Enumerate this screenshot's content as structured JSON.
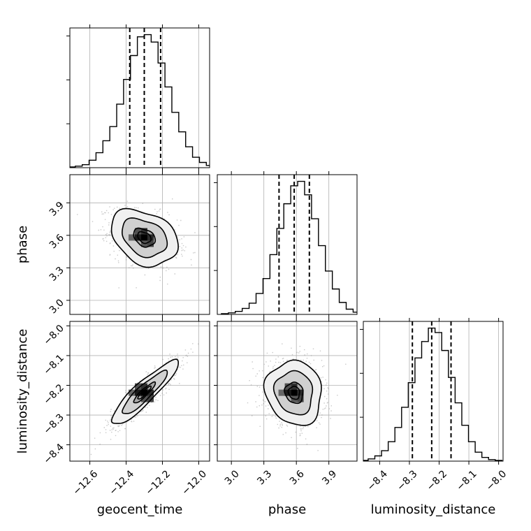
{
  "chart_data": {
    "type": "corner",
    "parameters": [
      "geocent_time",
      "phase",
      "luminosity_distance"
    ],
    "axes": {
      "geocent_time": {
        "label": "geocent_time",
        "range": [
          -12.71,
          -11.94
        ],
        "ticks": [
          -12.6,
          -12.4,
          -12.2,
          -12.0
        ],
        "tick_labels": [
          "−12.6",
          "−12.4",
          "−12.2",
          "−12.0"
        ]
      },
      "phase": {
        "label": "phase",
        "range": [
          2.87,
          4.16
        ],
        "ticks": [
          3.0,
          3.3,
          3.6,
          3.9
        ],
        "tick_labels": [
          "3.0",
          "3.3",
          "3.6",
          "3.9"
        ]
      },
      "luminosity_distance": {
        "label": "luminosity_distance",
        "range": [
          -8.455,
          -7.985
        ],
        "ticks": [
          -8.4,
          -8.3,
          -8.2,
          -8.1,
          -8.0
        ],
        "tick_labels": [
          "−8.4",
          "−8.3",
          "−8.2",
          "−8.1",
          "−8.0"
        ]
      }
    },
    "histograms": {
      "geocent_time": {
        "bins_center": -12.3,
        "bins_width": 0.038,
        "counts": [
          1,
          2,
          4,
          10,
          20,
          36,
          55,
          85,
          118,
          150,
          175,
          178,
          168,
          140,
          108,
          74,
          48,
          28,
          14,
          7,
          3,
          1
        ],
        "quantiles": [
          -12.38,
          -12.3,
          -12.21
        ]
      },
      "phase": {
        "bins_center": 3.58,
        "bins_width": 0.064,
        "counts": [
          1,
          2,
          4,
          8,
          15,
          28,
          48,
          80,
          115,
          148,
          172,
          178,
          160,
          128,
          92,
          58,
          34,
          16,
          7,
          3,
          1
        ],
        "quantiles": [
          3.44,
          3.58,
          3.72
        ]
      },
      "luminosity_distance": {
        "bins_center": -8.225,
        "bins_width": 0.0225,
        "counts": [
          1,
          3,
          7,
          14,
          26,
          45,
          72,
          105,
          138,
          160,
          178,
          172,
          148,
          112,
          78,
          48,
          26,
          12,
          5,
          2,
          1
        ],
        "quantiles": [
          -8.29,
          -8.225,
          -8.16
        ]
      }
    },
    "joint": [
      {
        "x": "geocent_time",
        "y": "phase",
        "mean": [
          -12.3,
          3.58
        ],
        "sd": [
          0.092,
          0.13
        ],
        "rho": -0.3
      },
      {
        "x": "geocent_time",
        "y": "luminosity_distance",
        "mean": [
          -12.3,
          -8.225
        ],
        "sd": [
          0.092,
          0.054
        ],
        "rho": 0.9
      },
      {
        "x": "phase",
        "y": "luminosity_distance",
        "mean": [
          3.58,
          -8.225
        ],
        "sd": [
          0.13,
          0.054
        ],
        "rho": -0.1
      }
    ],
    "grid": true
  }
}
